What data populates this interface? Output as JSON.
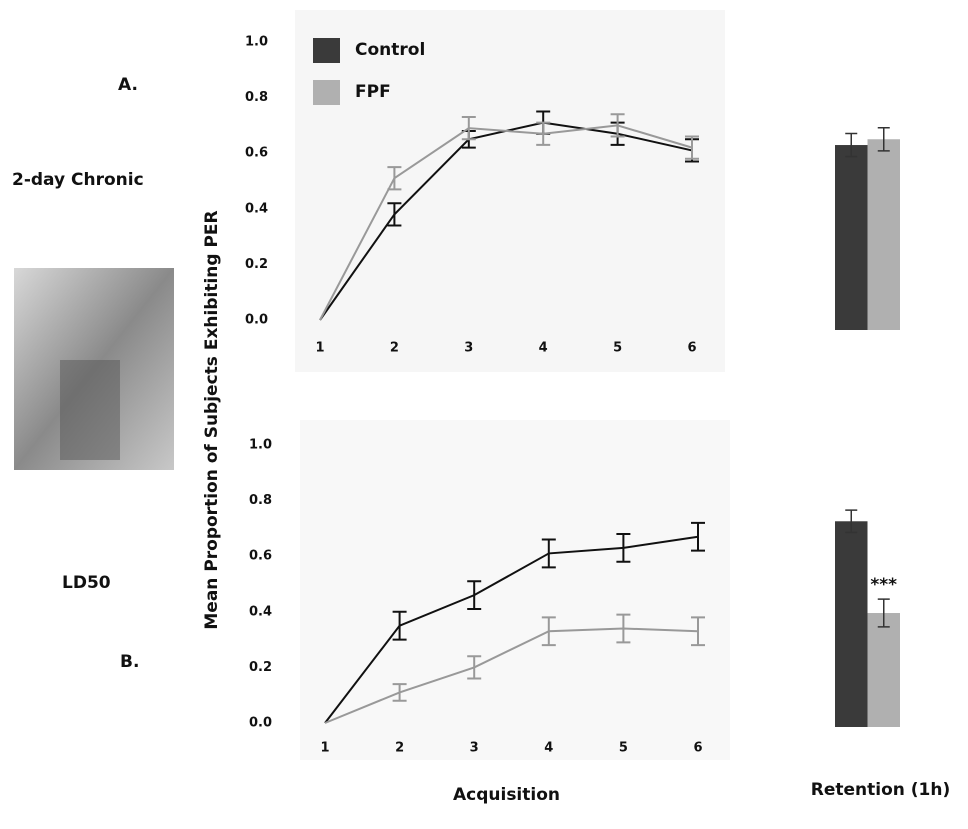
{
  "panels": {
    "a": "A.",
    "a_sub": "2-day Chronic",
    "b_sub": "LD50",
    "b": "B."
  },
  "chart_data": [
    {
      "type": "line",
      "ylabel": "Mean Proportion of Subjects Exhibiting PER",
      "categories": [
        "1",
        "2",
        "3",
        "4",
        "5",
        "6"
      ],
      "ylim": [
        0,
        1
      ],
      "yticks": [
        {
          "value": 0,
          "label": "0.0"
        },
        {
          "value": 0.2,
          "label": "0.2"
        },
        {
          "value": 0.4,
          "label": "0.4"
        },
        {
          "value": 0.6,
          "label": "0.6"
        },
        {
          "value": 0.8,
          "label": "0.8"
        },
        {
          "value": 1,
          "label": "1.0"
        }
      ],
      "legend": "upper left",
      "series": [
        {
          "name": "Control",
          "color": "#111111",
          "legend_color": "#3a3a3a",
          "values": [
            0,
            0.38,
            0.65,
            0.71,
            0.67,
            0.61
          ],
          "errors": [
            null,
            0.04,
            0.03,
            0.04,
            0.04,
            0.04
          ]
        },
        {
          "name": "FPF",
          "color": "#999999",
          "legend_color": "#b0b0b0",
          "values": [
            0,
            0.51,
            0.69,
            0.67,
            0.7,
            0.62
          ],
          "errors": [
            null,
            0.04,
            0.04,
            0.04,
            0.04,
            0.04
          ]
        }
      ]
    },
    {
      "type": "bar",
      "ylim": [
        0,
        1
      ],
      "series": [
        {
          "color": "#3a3a3a",
          "values": [
            0.64
          ],
          "errors": [
            0.04
          ]
        },
        {
          "color": "#b0b0b0",
          "values": [
            0.66
          ],
          "errors": [
            0.04
          ]
        }
      ]
    },
    {
      "type": "line",
      "xlabel": "Acquisition",
      "categories": [
        "1",
        "2",
        "3",
        "4",
        "5",
        "6"
      ],
      "ylim": [
        0,
        1
      ],
      "yticks": [
        {
          "value": 0,
          "label": "0.0"
        },
        {
          "value": 0.2,
          "label": "0.2"
        },
        {
          "value": 0.4,
          "label": "0.4"
        },
        {
          "value": 0.6,
          "label": "0.6"
        },
        {
          "value": 0.8,
          "label": "0.8"
        },
        {
          "value": 1,
          "label": "1.0"
        }
      ],
      "series": [
        {
          "color": "#111111",
          "values": [
            0,
            0.35,
            0.46,
            0.61,
            0.63,
            0.67
          ],
          "errors": [
            null,
            0.05,
            0.05,
            0.05,
            0.05,
            0.05
          ]
        },
        {
          "color": "#999999",
          "values": [
            0,
            0.11,
            0.2,
            0.33,
            0.34,
            0.33
          ],
          "errors": [
            null,
            0.03,
            0.04,
            0.05,
            0.05,
            0.05
          ]
        }
      ]
    },
    {
      "type": "bar",
      "xlabel": "Retention (1h)",
      "annotation": "***",
      "ylim": [
        0,
        1
      ],
      "series": [
        {
          "color": "#3a3a3a",
          "values": [
            0.74
          ],
          "errors": [
            0.04
          ]
        },
        {
          "color": "#b0b0b0",
          "values": [
            0.41
          ],
          "errors": [
            0.05
          ]
        }
      ]
    }
  ]
}
